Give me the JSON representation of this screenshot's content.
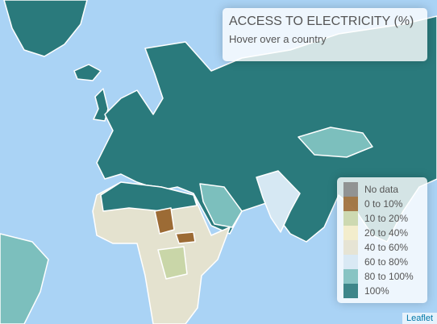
{
  "info": {
    "title": "ACCESS TO ELECTRICITY (%)",
    "hint": "Hover over a country"
  },
  "legend": [
    {
      "label": "No data",
      "color": "#8a8a8a"
    },
    {
      "label": "0 to 10%",
      "color": "#9c6b35"
    },
    {
      "label": "10 to 20%",
      "color": "#c9d6a8"
    },
    {
      "label": "20 to 40%",
      "color": "#f3ecc6"
    },
    {
      "label": "40 to 60%",
      "color": "#e4e2cf"
    },
    {
      "label": "60 to 80%",
      "color": "#d6e8f3"
    },
    {
      "label": "80 to 100%",
      "color": "#7cbfbd"
    },
    {
      "label": "100%",
      "color": "#2a7a7c"
    }
  ],
  "attribution": "Leaflet"
}
